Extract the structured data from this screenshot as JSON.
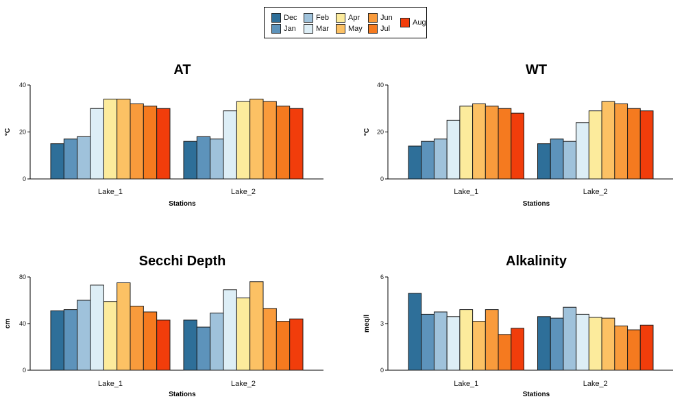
{
  "legend": {
    "months": [
      "Dec",
      "Jan",
      "Feb",
      "Mar",
      "Apr",
      "May",
      "Jun",
      "Jul",
      "Aug"
    ],
    "colors": [
      "#2E6F99",
      "#5D93BB",
      "#9FC2DB",
      "#DDEEF6",
      "#FCEB9C",
      "#FCC164",
      "#F99B3C",
      "#F57A1F",
      "#F13D0B"
    ]
  },
  "chart_data": [
    {
      "type": "bar",
      "title": "AT",
      "xlabel": "Stations",
      "ylabel": "°C",
      "categories": [
        "Lake_1",
        "Lake_2"
      ],
      "ylim": [
        0,
        40
      ],
      "yticks": [
        0,
        20,
        40
      ],
      "series": [
        {
          "name": "Dec",
          "values": [
            15,
            16
          ]
        },
        {
          "name": "Jan",
          "values": [
            17,
            18
          ]
        },
        {
          "name": "Feb",
          "values": [
            18,
            17
          ]
        },
        {
          "name": "Mar",
          "values": [
            30,
            29
          ]
        },
        {
          "name": "Apr",
          "values": [
            34,
            33
          ]
        },
        {
          "name": "May",
          "values": [
            34,
            34
          ]
        },
        {
          "name": "Jun",
          "values": [
            32,
            33
          ]
        },
        {
          "name": "Jul",
          "values": [
            31,
            31
          ]
        },
        {
          "name": "Aug",
          "values": [
            30,
            30
          ]
        }
      ]
    },
    {
      "type": "bar",
      "title": "WT",
      "xlabel": "Stations",
      "ylabel": "°C",
      "categories": [
        "Lake_1",
        "Lake_2"
      ],
      "ylim": [
        0,
        40
      ],
      "yticks": [
        0,
        20,
        40
      ],
      "series": [
        {
          "name": "Dec",
          "values": [
            14,
            15
          ]
        },
        {
          "name": "Jan",
          "values": [
            16,
            17
          ]
        },
        {
          "name": "Feb",
          "values": [
            17,
            16
          ]
        },
        {
          "name": "Mar",
          "values": [
            25,
            24
          ]
        },
        {
          "name": "Apr",
          "values": [
            31,
            29
          ]
        },
        {
          "name": "May",
          "values": [
            32,
            33
          ]
        },
        {
          "name": "Jun",
          "values": [
            31,
            32
          ]
        },
        {
          "name": "Jul",
          "values": [
            30,
            30
          ]
        },
        {
          "name": "Aug",
          "values": [
            28,
            29
          ]
        }
      ]
    },
    {
      "type": "bar",
      "title": "Secchi Depth",
      "xlabel": "Stations",
      "ylabel": "cm",
      "categories": [
        "Lake_1",
        "Lake_2"
      ],
      "ylim": [
        0,
        80
      ],
      "yticks": [
        0,
        40,
        80
      ],
      "series": [
        {
          "name": "Dec",
          "values": [
            51,
            43
          ]
        },
        {
          "name": "Jan",
          "values": [
            52,
            37
          ]
        },
        {
          "name": "Feb",
          "values": [
            60,
            49
          ]
        },
        {
          "name": "Mar",
          "values": [
            73,
            69
          ]
        },
        {
          "name": "Apr",
          "values": [
            59,
            62
          ]
        },
        {
          "name": "May",
          "values": [
            75,
            76
          ]
        },
        {
          "name": "Jun",
          "values": [
            55,
            53
          ]
        },
        {
          "name": "Jul",
          "values": [
            50,
            42
          ]
        },
        {
          "name": "Aug",
          "values": [
            43,
            44
          ]
        }
      ]
    },
    {
      "type": "bar",
      "title": "Alkalinity",
      "xlabel": "Stations",
      "ylabel": "meq/l",
      "categories": [
        "Lake_1",
        "Lake_2"
      ],
      "ylim": [
        0,
        6
      ],
      "yticks": [
        0,
        3,
        6
      ],
      "series": [
        {
          "name": "Dec",
          "values": [
            4.95,
            3.45
          ]
        },
        {
          "name": "Jan",
          "values": [
            3.6,
            3.35
          ]
        },
        {
          "name": "Feb",
          "values": [
            3.75,
            4.05
          ]
        },
        {
          "name": "Mar",
          "values": [
            3.45,
            3.6
          ]
        },
        {
          "name": "Apr",
          "values": [
            3.9,
            3.4
          ]
        },
        {
          "name": "May",
          "values": [
            3.15,
            3.35
          ]
        },
        {
          "name": "Jun",
          "values": [
            3.9,
            2.85
          ]
        },
        {
          "name": "Jul",
          "values": [
            2.3,
            2.6
          ]
        },
        {
          "name": "Aug",
          "values": [
            2.7,
            2.9
          ]
        }
      ]
    }
  ]
}
